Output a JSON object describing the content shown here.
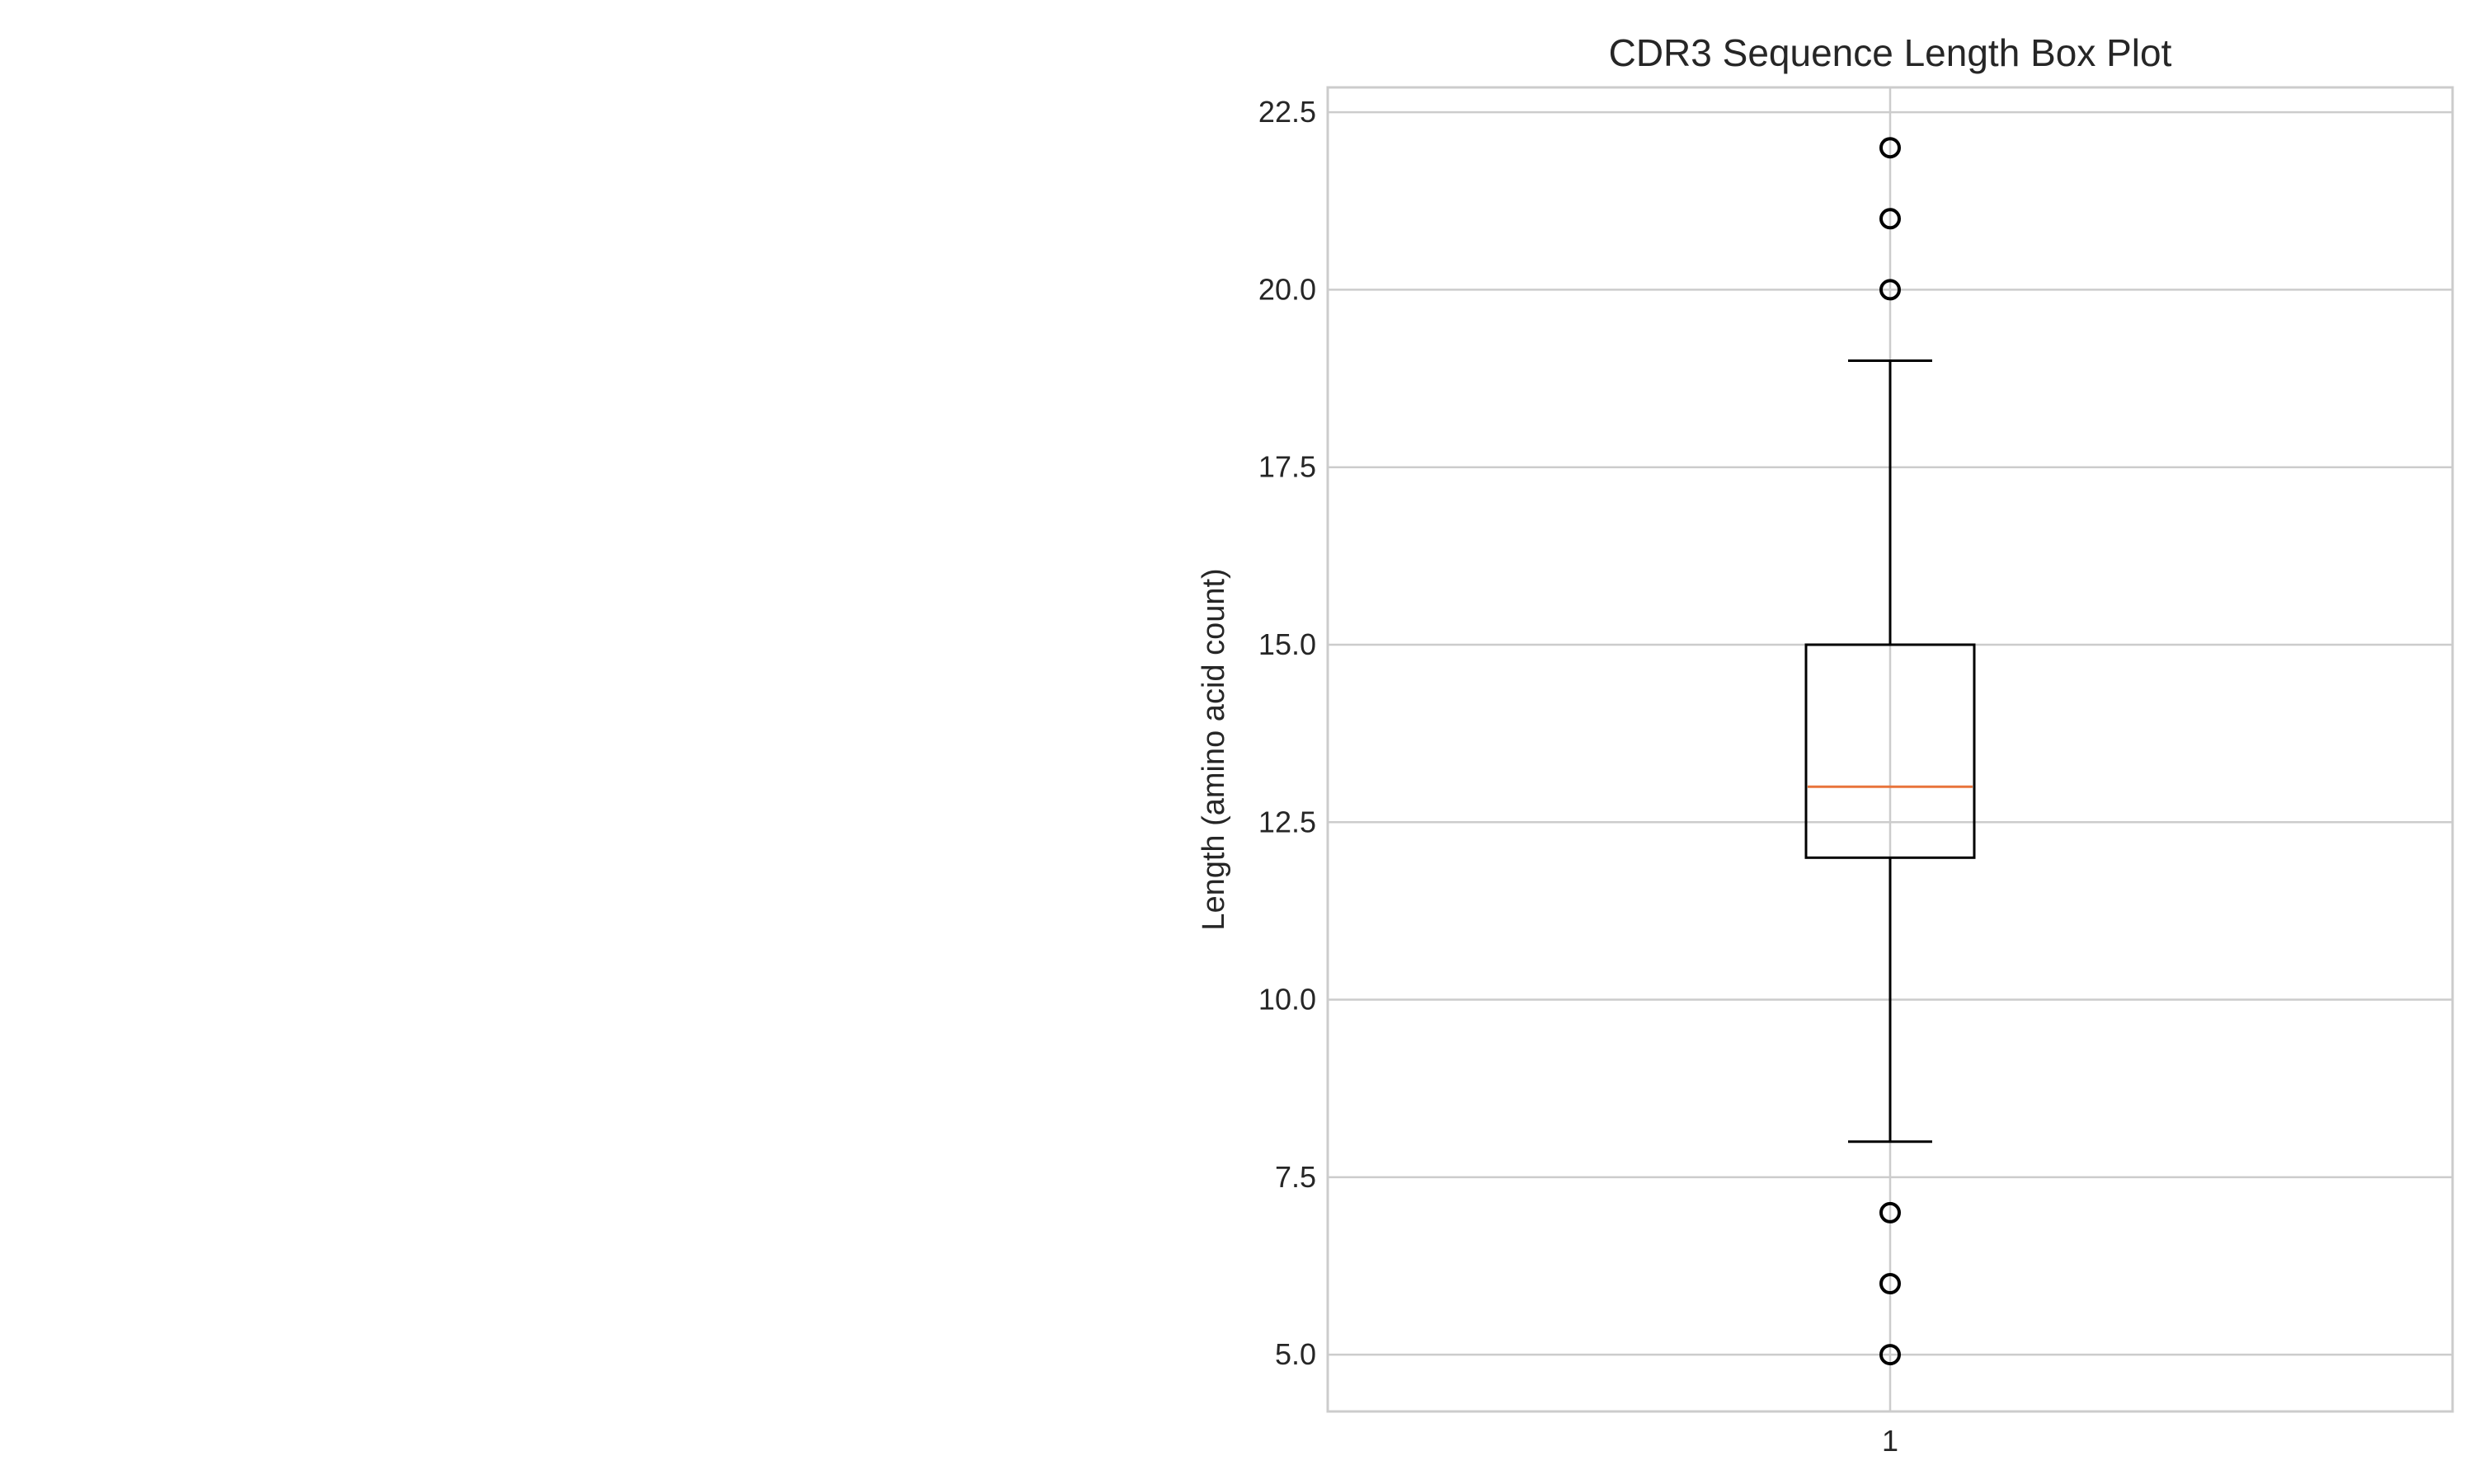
{
  "chart_data": {
    "type": "box",
    "title": "CDR3 Sequence Length Box Plot",
    "xlabel": "",
    "ylabel": "Length (amino acid count)",
    "categories": [
      "1"
    ],
    "x_tick_labels": [
      "1"
    ],
    "y_ticks": [
      5.0,
      7.5,
      10.0,
      12.5,
      15.0,
      17.5,
      20.0,
      22.5
    ],
    "y_tick_labels": [
      "5.0",
      "7.5",
      "10.0",
      "12.5",
      "15.0",
      "17.5",
      "20.0",
      "22.5"
    ],
    "ylim": [
      4.2,
      22.85
    ],
    "grid": true,
    "boxes": [
      {
        "category": "1",
        "whisker_low": 8,
        "q1": 12,
        "median": 13,
        "q3": 15,
        "whisker_high": 19,
        "outliers": [
          5,
          6,
          7,
          20,
          21,
          22
        ]
      }
    ],
    "colors": {
      "grid": "#cccccc",
      "spine": "#cccccc",
      "box": "#000000",
      "median": "#e8743b",
      "text": "#262626"
    }
  }
}
